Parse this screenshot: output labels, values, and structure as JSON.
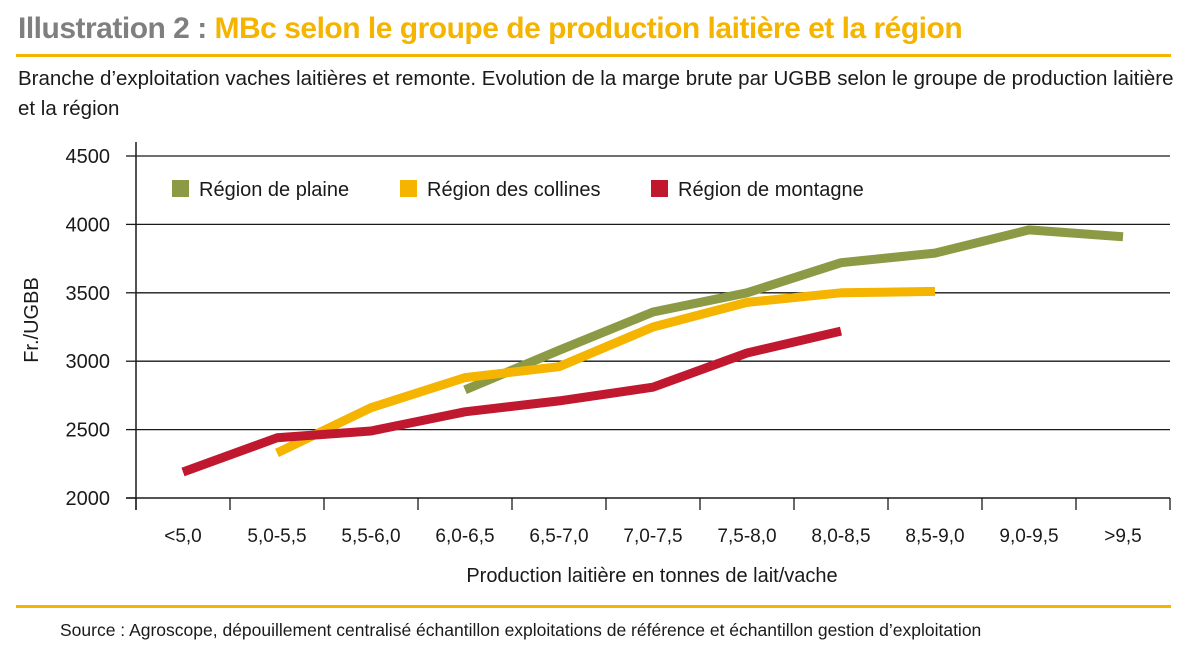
{
  "header": {
    "title_prefix": "Illustration 2 : ",
    "title_main": "MBc selon le groupe de production laitière et la région",
    "subtitle": "Branche d’exploitation vaches laitières et remonte. Evolution de la marge brute par UGBB selon le groupe de production laitière et la région"
  },
  "footer": {
    "source": "Source : Agroscope, dépouillement centralisé échantillon exploitations de référence et échantillon gestion d’exploitation"
  },
  "chart_data": {
    "type": "line",
    "title": "MBc selon le groupe de production laitière et la région",
    "xlabel": "Production laitière en tonnes de lait/vache",
    "ylabel": "Fr./UGBB",
    "ylim": [
      2000,
      4500
    ],
    "yticks": [
      2000,
      2500,
      3000,
      3500,
      4000,
      4500
    ],
    "grid": true,
    "legend": "top-left",
    "categories": [
      "<5,0",
      "5,0-5,5",
      "5,5-6,0",
      "6,0-6,5",
      "6,5-7,0",
      "7,0-7,5",
      "7,5-8,0",
      "8,0-8,5",
      "8,5-9,0",
      "9,0-9,5",
      ">9,5"
    ],
    "series": [
      {
        "name": "Région de plaine",
        "color": "#8c9a45",
        "values": [
          null,
          null,
          null,
          2790,
          3080,
          3360,
          3500,
          3720,
          3790,
          3960,
          3910
        ]
      },
      {
        "name": "Région des collines",
        "color": "#f5b400",
        "values": [
          null,
          2330,
          2660,
          2880,
          2960,
          3250,
          3430,
          3500,
          3510,
          null,
          null
        ]
      },
      {
        "name": "Région de montagne",
        "color": "#c0182f",
        "values": [
          2190,
          2440,
          2490,
          2630,
          2710,
          2810,
          3060,
          3220,
          null,
          null,
          null
        ]
      }
    ]
  }
}
